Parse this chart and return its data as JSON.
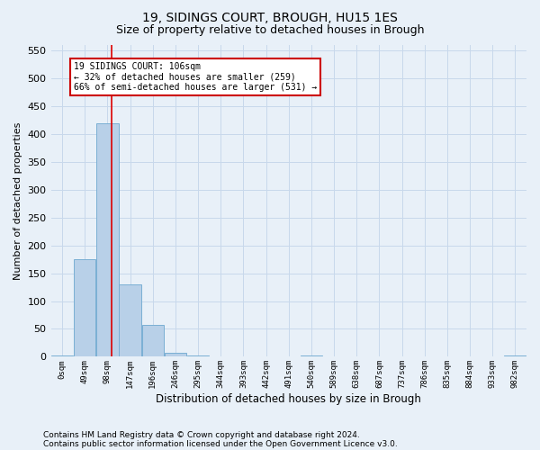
{
  "title": "19, SIDINGS COURT, BROUGH, HU15 1ES",
  "subtitle": "Size of property relative to detached houses in Brough",
  "xlabel": "Distribution of detached houses by size in Brough",
  "ylabel": "Number of detached properties",
  "footnote1": "Contains HM Land Registry data © Crown copyright and database right 2024.",
  "footnote2": "Contains public sector information licensed under the Open Government Licence v3.0.",
  "bin_labels": [
    "0sqm",
    "49sqm",
    "98sqm",
    "147sqm",
    "196sqm",
    "246sqm",
    "295sqm",
    "344sqm",
    "393sqm",
    "442sqm",
    "491sqm",
    "540sqm",
    "589sqm",
    "638sqm",
    "687sqm",
    "737sqm",
    "786sqm",
    "835sqm",
    "884sqm",
    "933sqm",
    "982sqm"
  ],
  "bar_values": [
    3,
    175,
    420,
    130,
    57,
    7,
    2,
    1,
    0,
    0,
    0,
    3,
    0,
    0,
    0,
    0,
    0,
    0,
    0,
    0,
    3
  ],
  "bar_color": "#b8d0e8",
  "bar_edgecolor": "#7aafd4",
  "property_line_x": 2.18,
  "bin_width": 49,
  "ylim": [
    0,
    560
  ],
  "yticks": [
    0,
    50,
    100,
    150,
    200,
    250,
    300,
    350,
    400,
    450,
    500,
    550
  ],
  "annotation_text": "19 SIDINGS COURT: 106sqm\n← 32% of detached houses are smaller (259)\n66% of semi-detached houses are larger (531) →",
  "annotation_box_color": "#ffffff",
  "annotation_box_edgecolor": "#cc0000",
  "red_line_color": "#dd0000",
  "grid_color": "#c8d8eb",
  "background_color": "#e8f0f8",
  "title_fontsize": 10,
  "subtitle_fontsize": 9
}
